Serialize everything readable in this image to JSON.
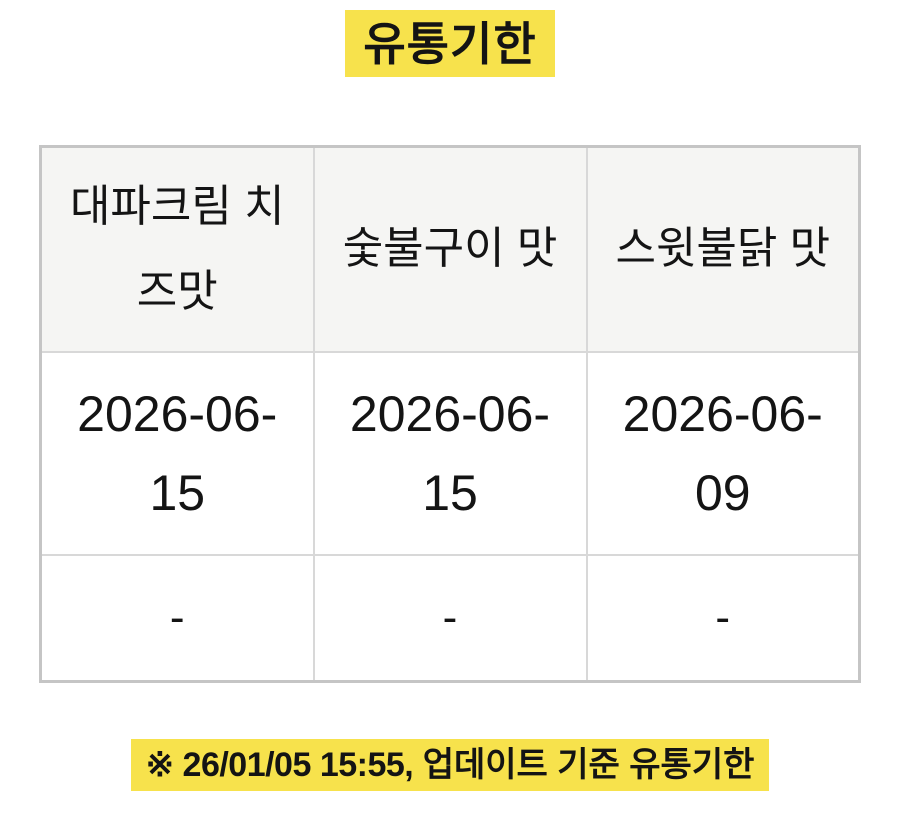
{
  "title": {
    "text": "유통기한"
  },
  "table": {
    "headers": [
      "대파크림 치즈맛",
      "숯불구이 맛",
      "스윗불닭 맛"
    ],
    "rows": [
      [
        "2026-06-15",
        "2026-06-15",
        "2026-06-09"
      ],
      [
        "-",
        "-",
        "-"
      ]
    ]
  },
  "footer": {
    "timestamp_part": "※ 26/01/05 15:55,",
    "label_part": "업데이트 기준 유통기한"
  },
  "colors": {
    "highlight_yellow": "#f7e24c",
    "outer_border": "#c5c5c5",
    "inner_border": "#d8d8d8",
    "header_bg": "#f5f5f3",
    "text": "#141414"
  },
  "chart_data": {
    "type": "table",
    "title": "유통기한",
    "categories": [
      "대파크림 치즈맛",
      "숯불구이 맛",
      "스윗불닭 맛"
    ],
    "rows": [
      [
        "2026-06-15",
        "2026-06-15",
        "2026-06-09"
      ],
      [
        "-",
        "-",
        "-"
      ]
    ],
    "annotations": [
      "※ 26/01/05 15:55, 업데이트 기준 유통기한"
    ]
  }
}
